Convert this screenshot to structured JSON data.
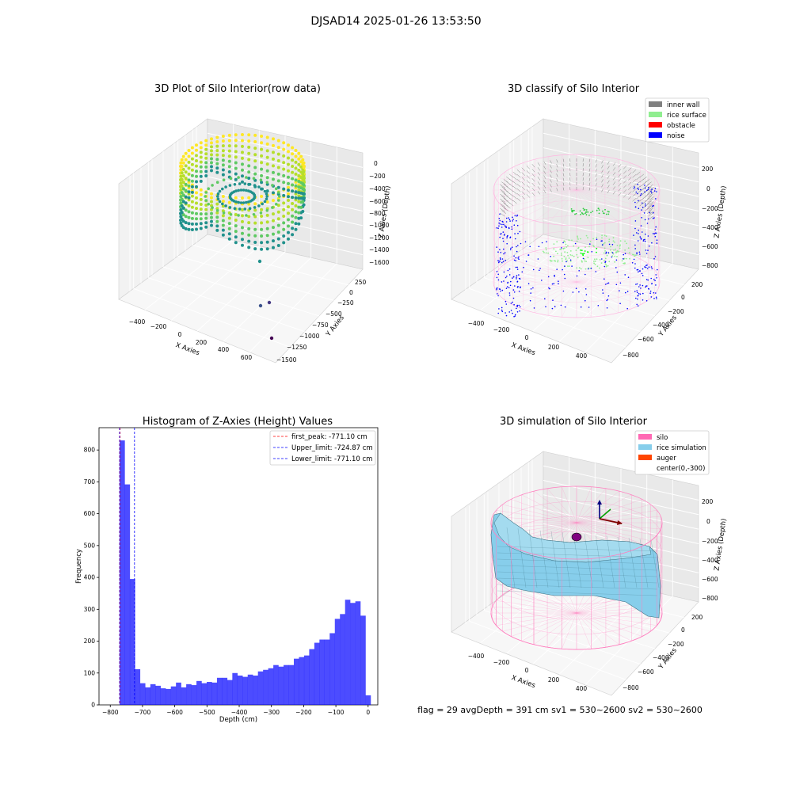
{
  "suptitle": "DJSAD14 2025-01-26 13:53:50",
  "footer": "flag = 29  avgDepth = 391 cm  sv1 = 530~2600  sv2 = 530~2600",
  "panels": {
    "raw": {
      "title": "3D Plot of Silo Interior(row data)",
      "xlabel": "X Axies",
      "ylabel": "Y Axies",
      "zlabel": "Z Axies (Depth)",
      "xticks": [
        "−400",
        "−200",
        "0",
        "200",
        "400",
        "600"
      ],
      "yticks": [
        "250",
        "0",
        "−250",
        "−500",
        "−750",
        "−1000",
        "−1250",
        "−1500"
      ],
      "zticks": [
        "0",
        "−200",
        "−400",
        "−600",
        "−800",
        "−1000",
        "−1200",
        "−1400",
        "−1600"
      ]
    },
    "classify": {
      "title": "3D classify of Silo Interior",
      "xlabel": "X Axies",
      "ylabel": "Y Axies",
      "zlabel": "Z Axies (Depth)",
      "xticks": [
        "−400",
        "−200",
        "0",
        "200",
        "400"
      ],
      "yticks": [
        "200",
        "0",
        "−200",
        "−400",
        "−600",
        "−800"
      ],
      "zticks": [
        "200",
        "0",
        "−200",
        "−400",
        "−600",
        "−800"
      ],
      "legend": [
        {
          "label": "inner wall",
          "color": "#808080"
        },
        {
          "label": "rice surface",
          "color": "#90ee90"
        },
        {
          "label": "obstacle",
          "color": "#ff0000"
        },
        {
          "label": "noise",
          "color": "#0000ff"
        }
      ]
    },
    "simulation": {
      "title": "3D simulation of Silo Interior",
      "xlabel": "X Axies",
      "ylabel": "Y Axies",
      "zlabel": "Z Axies (Depth)",
      "xticks": [
        "−400",
        "−200",
        "0",
        "200",
        "400"
      ],
      "yticks": [
        "200",
        "0",
        "−200",
        "−400",
        "−600",
        "−800"
      ],
      "zticks": [
        "200",
        "0",
        "−200",
        "−400",
        "−600",
        "−800"
      ],
      "legend": [
        {
          "label": "silo",
          "color": "#ff69b4"
        },
        {
          "label": "rice simulation",
          "color": "#87ceeb"
        },
        {
          "label": "auger",
          "color": "#ff4500"
        },
        {
          "label": "center(0,-300)",
          "color": ""
        }
      ]
    }
  },
  "chart_data": {
    "type": "bar",
    "title": "Histogram of Z-Axies (Height) Values",
    "xlabel": "Depth (cm)",
    "ylabel": "Frequency",
    "xlim": [
      -800,
      0
    ],
    "ylim": [
      0,
      870
    ],
    "xticks": [
      -800,
      -700,
      -600,
      -500,
      -400,
      -300,
      -200,
      -100,
      0
    ],
    "yticks": [
      0,
      100,
      200,
      300,
      400,
      500,
      600,
      700,
      800
    ],
    "bar_color": "#0000ff",
    "bin_start": -771.1,
    "bin_width": 15.9,
    "values": [
      830,
      692,
      395,
      112,
      68,
      55,
      65,
      60,
      52,
      50,
      58,
      70,
      55,
      65,
      62,
      75,
      68,
      72,
      70,
      85,
      85,
      78,
      100,
      92,
      88,
      95,
      92,
      105,
      110,
      115,
      125,
      120,
      125,
      125,
      145,
      150,
      155,
      175,
      195,
      205,
      205,
      225,
      270,
      285,
      330,
      320,
      325,
      280,
      30
    ],
    "lines": [
      {
        "label": "first_peak: -771.10 cm",
        "x": -771.1,
        "color": "#ff0000"
      },
      {
        "label": "Upper_limit: -724.87 cm",
        "x": -724.87,
        "color": "#0000ff"
      },
      {
        "label": "Lower_limit: -771.10 cm",
        "x": -771.1,
        "color": "#0000ff"
      }
    ]
  }
}
